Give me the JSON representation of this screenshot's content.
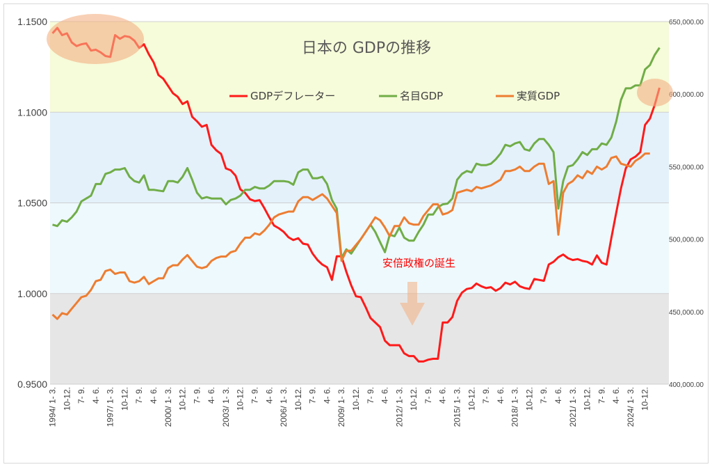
{
  "chart_data": {
    "type": "line",
    "title": "日本の GDPの推移",
    "annotation": "安倍政権の誕生",
    "x_tick_labels": [
      "1994/ 1- 3.",
      "10-12.",
      "7- 9.",
      "4- 6.",
      "1997/ 1- 3.",
      "10-12.",
      "7- 9.",
      "4- 6.",
      "2000/ 1- 3.",
      "10-12.",
      "7- 9.",
      "4- 6.",
      "2003/ 1- 3.",
      "10-12.",
      "7- 9.",
      "4- 6.",
      "2006/ 1- 3.",
      "10-12.",
      "7- 9.",
      "4- 6.",
      "2009/ 1- 3.",
      "10-12.",
      "7- 9.",
      "4- 6.",
      "2012/ 1- 3.",
      "10-12.",
      "7- 9.",
      "4- 6.",
      "2015/ 1- 3.",
      "10-12.",
      "7- 9.",
      "4- 6.",
      "2018/ 1- 3.",
      "10-12.",
      "7- 9.",
      "4- 6.",
      "2021/ 1- 3.",
      "10-12.",
      "7- 9.",
      "4- 6.",
      "2024/ 1- 3.",
      "10-12."
    ],
    "y_left": {
      "min": 0.95,
      "max": 1.15,
      "ticks": [
        "0.9500",
        "1.0000",
        "1.0500",
        "1.1000",
        "1.1500"
      ]
    },
    "y_right": {
      "min": 400000,
      "max": 650000,
      "ticks": [
        "400,000.00",
        "450,000.00",
        "500,000.00",
        "550,000.00",
        "600,000.00",
        "650,000.00"
      ]
    },
    "bands": [
      {
        "from": 1.1,
        "to": 1.15,
        "color": "#f6fbd9"
      },
      {
        "from": 1.05,
        "to": 1.1,
        "color": "#e4f1fa"
      },
      {
        "from": 1.0,
        "to": 1.05,
        "color": "#eef9fd"
      },
      {
        "from": 0.95,
        "to": 1.0,
        "color": "#e6e6e6"
      }
    ],
    "series": [
      {
        "name": "GDPデフレーター",
        "axis": "left",
        "color": "#ff1a1a",
        "values": [
          1.1435,
          1.1465,
          1.1425,
          1.1435,
          1.1385,
          1.1365,
          1.1375,
          1.138,
          1.134,
          1.1345,
          1.133,
          1.131,
          1.1305,
          1.1425,
          1.1405,
          1.142,
          1.1415,
          1.1395,
          1.1355,
          1.1375,
          1.132,
          1.1275,
          1.1205,
          1.1185,
          1.1145,
          1.1105,
          1.1085,
          1.1045,
          1.106,
          1.0975,
          1.095,
          1.092,
          1.093,
          1.082,
          1.079,
          1.077,
          1.069,
          1.068,
          1.065,
          1.0575,
          1.0555,
          1.052,
          1.051,
          1.0515,
          1.047,
          1.042,
          1.0375,
          1.036,
          1.034,
          1.031,
          1.0295,
          1.0305,
          1.0275,
          1.027,
          1.022,
          1.0185,
          1.016,
          1.0145,
          1.0075,
          1.0205,
          1.0205,
          1.012,
          1.0045,
          0.9985,
          0.998,
          0.9925,
          0.9865,
          0.984,
          0.9815,
          0.974,
          0.9715,
          0.9715,
          0.9715,
          0.967,
          0.9655,
          0.9655,
          0.9625,
          0.9625,
          0.9635,
          0.964,
          0.964,
          0.984,
          0.984,
          0.987,
          0.996,
          1.0005,
          1.0025,
          1.003,
          1.0055,
          1.004,
          1.003,
          1.0035,
          1.0015,
          1.003,
          1.006,
          1.005,
          1.0065,
          1.004,
          1.003,
          1.0025,
          1.008,
          1.0075,
          1.007,
          1.016,
          1.0175,
          1.02,
          1.0215,
          1.0195,
          1.0185,
          1.019,
          1.018,
          1.0175,
          1.016,
          1.021,
          1.017,
          1.016,
          1.0305,
          1.0445,
          1.058,
          1.069,
          1.074,
          1.0755,
          1.078,
          1.093,
          1.0965,
          1.104,
          1.1135
        ]
      },
      {
        "name": "名目GDP",
        "axis": "right",
        "color": "#70ad47",
        "values": [
          510000,
          509000,
          513000,
          512000,
          515000,
          519000,
          526000,
          528000,
          530000,
          538000,
          538000,
          545000,
          546000,
          548000,
          548000,
          549000,
          543000,
          540000,
          539000,
          544000,
          534000,
          534000,
          533500,
          533000,
          540000,
          540000,
          539000,
          543000,
          549000,
          541000,
          532000,
          528000,
          529000,
          528000,
          528000,
          528000,
          524000,
          527000,
          528000,
          530000,
          534000,
          534000,
          536000,
          535000,
          535000,
          537000,
          540000,
          540000,
          540000,
          539500,
          537500,
          546000,
          548000,
          548000,
          542000,
          542000,
          543000,
          538000,
          527000,
          521000,
          487000,
          493000,
          490000,
          495000,
          500000,
          505000,
          510000,
          505000,
          498000,
          491000,
          503000,
          502000,
          508000,
          501000,
          499000,
          499000,
          505000,
          510000,
          517000,
          517000,
          522000,
          524000,
          524500,
          528000,
          541000,
          545000,
          547000,
          546000,
          552000,
          551000,
          551000,
          552000,
          555000,
          559000,
          565000,
          564000,
          566000,
          567000,
          562000,
          561000,
          566000,
          569000,
          569000,
          565000,
          560000,
          521000,
          540000,
          550000,
          551000,
          555000,
          560000,
          558000,
          562000,
          562000,
          566000,
          565000,
          570000,
          581000,
          596000,
          604000,
          604000,
          606000,
          606000,
          617000,
          620000,
          627000,
          632000
        ]
      },
      {
        "name": "実質GDP",
        "axis": "right",
        "color": "#ed7d31",
        "values": [
          448000,
          445000,
          449000,
          448000,
          452000,
          456000,
          460000,
          461000,
          465000,
          471000,
          472000,
          478000,
          479000,
          476000,
          477000,
          477000,
          471000,
          470000,
          471000,
          474000,
          469000,
          471000,
          473000,
          473000,
          480000,
          482000,
          482000,
          486000,
          489000,
          485000,
          481000,
          480000,
          481000,
          485000,
          487000,
          488000,
          488000,
          491000,
          492000,
          497000,
          501000,
          501000,
          504000,
          503000,
          506000,
          510000,
          515000,
          517000,
          518000,
          519000,
          519000,
          526000,
          529000,
          529000,
          527000,
          529000,
          531000,
          528000,
          523000,
          518000,
          485000,
          492000,
          492000,
          496000,
          500000,
          505000,
          510000,
          515000,
          513000,
          508000,
          502000,
          509000,
          509000,
          515000,
          511000,
          510000,
          510000,
          516000,
          520000,
          524000,
          524000,
          517000,
          518000,
          520000,
          532000,
          533000,
          534000,
          533000,
          536000,
          535000,
          536000,
          537000,
          539000,
          541000,
          547000,
          547000,
          548000,
          550000,
          547000,
          547000,
          550000,
          552000,
          552000,
          538000,
          540000,
          503000,
          532000,
          538000,
          540000,
          544000,
          542000,
          547000,
          545000,
          550000,
          548000,
          550000,
          556000,
          557000,
          552000,
          551000,
          550000,
          554000,
          556000,
          559000,
          559000
        ]
      }
    ]
  }
}
